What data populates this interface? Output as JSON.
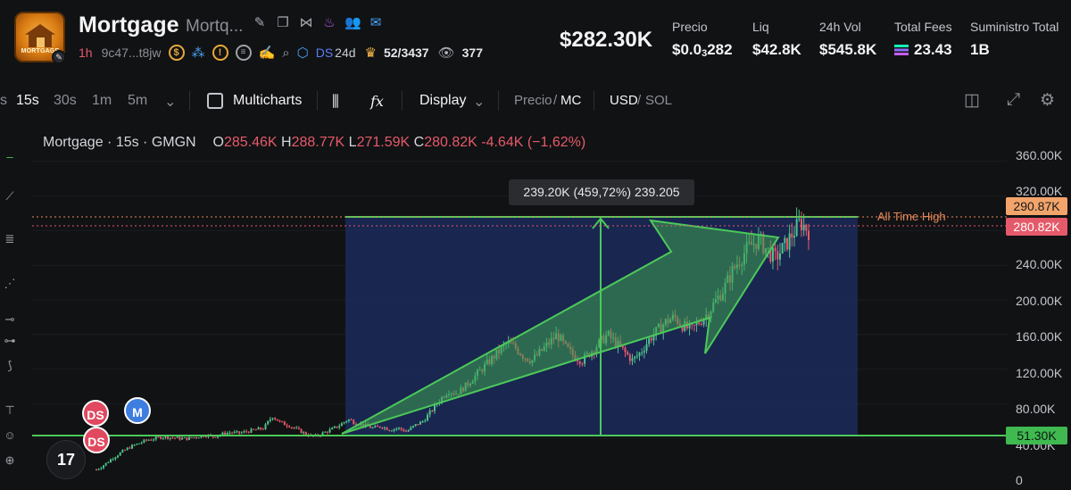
{
  "token": {
    "name": "Mortgage",
    "sub": "Mortq...",
    "logo_text": "MORTGAGE",
    "age": "1h",
    "address": "9c47...t8jw",
    "ds_label": "DS",
    "ds_age": "24d",
    "holders": "52/3437",
    "views": "377"
  },
  "market": {
    "mcap": "$282.30K",
    "stats": [
      {
        "label": "Precio",
        "value_prefix": "$0.0",
        "value_sub": "3",
        "value_suffix": "282"
      },
      {
        "label": "Liq",
        "value": "$42.8K"
      },
      {
        "label": "24h Vol",
        "value": "$545.8K"
      },
      {
        "label": "Total Fees",
        "value": "23.43"
      },
      {
        "label": "Suministro Total",
        "value": "1B"
      }
    ]
  },
  "toolbar": {
    "intervals": [
      "15s",
      "30s",
      "1m",
      "5m"
    ],
    "active_interval": "15s",
    "multicharts": "Multicharts",
    "display": "Display",
    "price_label": "Precio",
    "mc_label": "MC",
    "usd_label": "USD",
    "sol_label": "SOL",
    "slash": "/"
  },
  "legend": {
    "title": "Mortgage · 15s · GMGN",
    "o_key": "O",
    "o": "285.46K",
    "h_key": "H",
    "h": "288.77K",
    "l_key": "L",
    "l": "271.59K",
    "c_key": "C",
    "c": "280.82K",
    "change": "-4.64K (−1,62%)"
  },
  "overlay": {
    "measure_tooltip": "239.20K (459,72%) 239.205",
    "ath_label": "All Time High",
    "markers": [
      "DS",
      "M",
      "DS"
    ]
  },
  "price_tags": {
    "ath": "290.87K",
    "current": "280.82K",
    "support": "51.30K"
  },
  "chart_data": {
    "type": "candlestick",
    "y_axis_ticks": [
      "360.00K",
      "320.00K",
      "240.00K",
      "200.00K",
      "160.00K",
      "120.00K",
      "80.00K",
      "40.00K",
      "0"
    ],
    "ylim": [
      0,
      380
    ],
    "ath_level": 290.87,
    "current_level": 280.82,
    "support_level": 51.3,
    "close_path": [
      4,
      10,
      18,
      24,
      30,
      34,
      38,
      40,
      42,
      41,
      40,
      40,
      42,
      44,
      42,
      45,
      47,
      46,
      48,
      50,
      52,
      66,
      58,
      55,
      50,
      45,
      42,
      46,
      50,
      55,
      62,
      58,
      55,
      52,
      54,
      50,
      52,
      48,
      55,
      60,
      72,
      85,
      95,
      92,
      100,
      110,
      120,
      130,
      140,
      150,
      145,
      135,
      130,
      140,
      150,
      160,
      145,
      135,
      130,
      140,
      150,
      160,
      150,
      140,
      130,
      140,
      155,
      165,
      175,
      180,
      170,
      165,
      175,
      185,
      200,
      215,
      235,
      250,
      262,
      270,
      258,
      248,
      260,
      275,
      290,
      280
    ]
  },
  "colors": {
    "up": "#4ec38a",
    "down": "#e55a6a",
    "accent_green": "#4cc95a",
    "measure_box": "#1b2a5a",
    "ath_dotted": "#e8895a"
  }
}
